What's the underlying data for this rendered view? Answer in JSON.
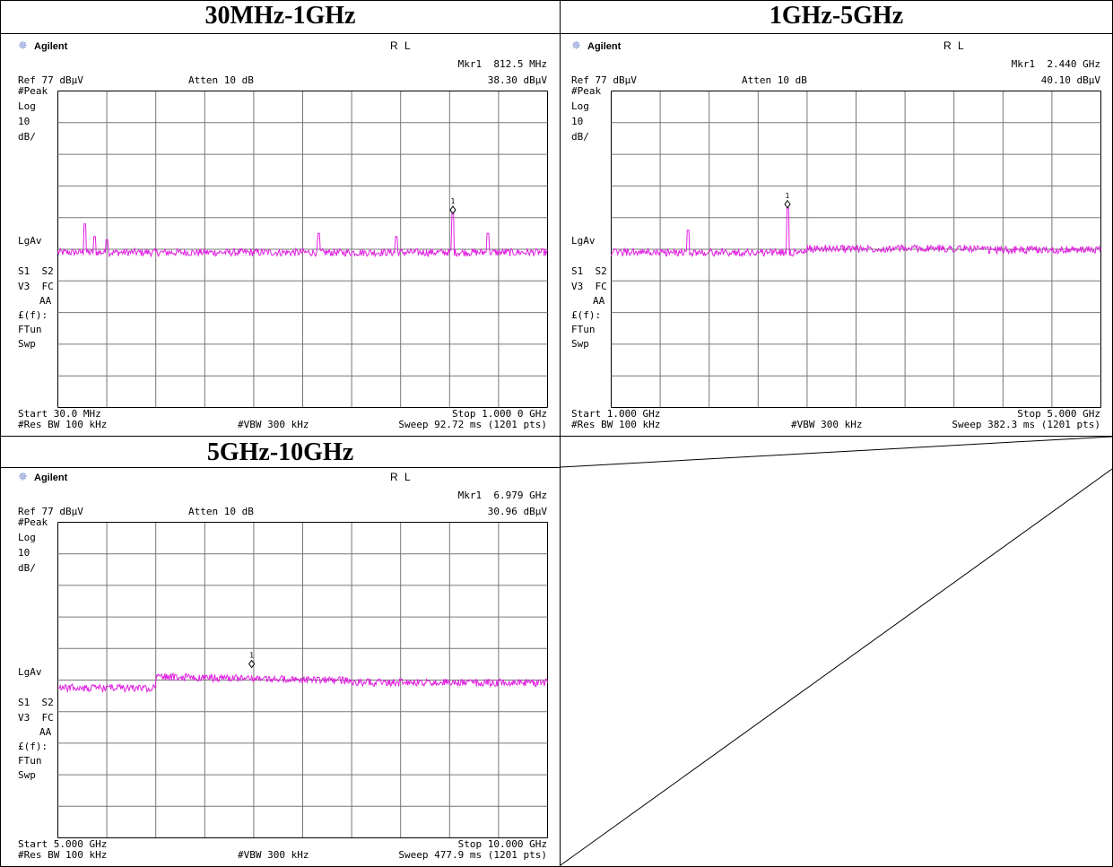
{
  "report": {
    "titles": [
      "30MHz-1GHz",
      "1GHz-5GHz",
      "5GHz-10GHz"
    ]
  },
  "panels": [
    {
      "brand": "Agilent",
      "mode": "R L",
      "marker_label": "Mkr1  812.5 MHz",
      "marker_value": "38.30 dBµV",
      "ref": "Ref 77 dBµV",
      "atten": "Atten 10 dB",
      "left_labels": [
        "#Peak",
        "Log",
        "10",
        "dB/",
        "",
        "",
        "",
        "",
        "",
        "LgAv",
        "",
        "S1  S2",
        "V3  FC",
        "AA",
        "£(f):",
        "FTun",
        "Swp"
      ],
      "start": "Start 30.0 MHz",
      "stop": "Stop 1.000 0 GHz",
      "res_bw": "#Res BW 100 kHz",
      "vbw": "#VBW 300 kHz",
      "sweep": "Sweep 92.72 ms (1201 pts)"
    },
    {
      "brand": "Agilent",
      "mode": "R L",
      "marker_label": "Mkr1  2.440 GHz",
      "marker_value": "40.10 dBµV",
      "ref": "Ref 77 dBµV",
      "atten": "Atten 10 dB",
      "left_labels": [
        "#Peak",
        "Log",
        "10",
        "dB/",
        "",
        "",
        "",
        "",
        "",
        "LgAv",
        "",
        "S1  S2",
        "V3  FC",
        "AA",
        "£(f):",
        "FTun",
        "Swp"
      ],
      "start": "Start 1.000 GHz",
      "stop": "Stop 5.000 GHz",
      "res_bw": "#Res BW 100 kHz",
      "vbw": "#VBW 300 kHz",
      "sweep": "Sweep 382.3 ms (1201 pts)"
    },
    {
      "brand": "Agilent",
      "mode": "R L",
      "marker_label": "Mkr1  6.979 GHz",
      "marker_value": "30.96 dBµV",
      "ref": "Ref 77 dBµV",
      "atten": "Atten 10 dB",
      "left_labels": [
        "#Peak",
        "Log",
        "10",
        "dB/",
        "",
        "",
        "",
        "",
        "",
        "LgAv",
        "",
        "S1  S2",
        "V3  FC",
        "AA",
        "£(f):",
        "FTun",
        "Swp"
      ],
      "start": "Start 5.000 GHz",
      "stop": "Stop 10.000 GHz",
      "res_bw": "#Res BW 100 kHz",
      "vbw": "#VBW 300 kHz",
      "sweep": "Sweep 477.9 ms (1201 pts)"
    }
  ],
  "chart_data": [
    {
      "type": "line",
      "xlim": [
        30.0,
        1000.0
      ],
      "x_unit": "MHz",
      "ylim": [
        -23,
        77
      ],
      "y_unit": "dBµV",
      "y_scale": "Log 10 dB/div",
      "grid": true,
      "trace_color": "#e020e0",
      "noise_floor": 26,
      "spikes": [
        {
          "x": 84,
          "y": 35
        },
        {
          "x": 103,
          "y": 31
        },
        {
          "x": 127,
          "y": 30
        },
        {
          "x": 546,
          "y": 32
        },
        {
          "x": 700,
          "y": 31
        },
        {
          "x": 812.5,
          "y": 38.3
        },
        {
          "x": 881,
          "y": 32
        }
      ],
      "marker": {
        "label": "1",
        "x": 812.5,
        "y": 38.3
      }
    },
    {
      "type": "line",
      "xlim": [
        1.0,
        5.0
      ],
      "x_unit": "GHz",
      "ylim": [
        -23,
        77
      ],
      "y_unit": "dBµV",
      "y_scale": "Log 10 dB/div",
      "grid": true,
      "trace_color": "#e020e0",
      "noise_floor": 26,
      "spikes": [
        {
          "x": 1.625,
          "y": 33
        },
        {
          "x": 2.44,
          "y": 40.1
        }
      ],
      "marker": {
        "label": "1",
        "x": 2.44,
        "y": 40.1
      }
    },
    {
      "type": "line",
      "xlim": [
        5.0,
        10.0
      ],
      "x_unit": "GHz",
      "ylim": [
        -23,
        77
      ],
      "y_unit": "dBµV",
      "y_scale": "Log 10 dB/div",
      "grid": true,
      "trace_color": "#e020e0",
      "noise_floor": 26,
      "spikes": [],
      "marker": {
        "label": "1",
        "x": 6.979,
        "y": 30.96
      }
    }
  ]
}
